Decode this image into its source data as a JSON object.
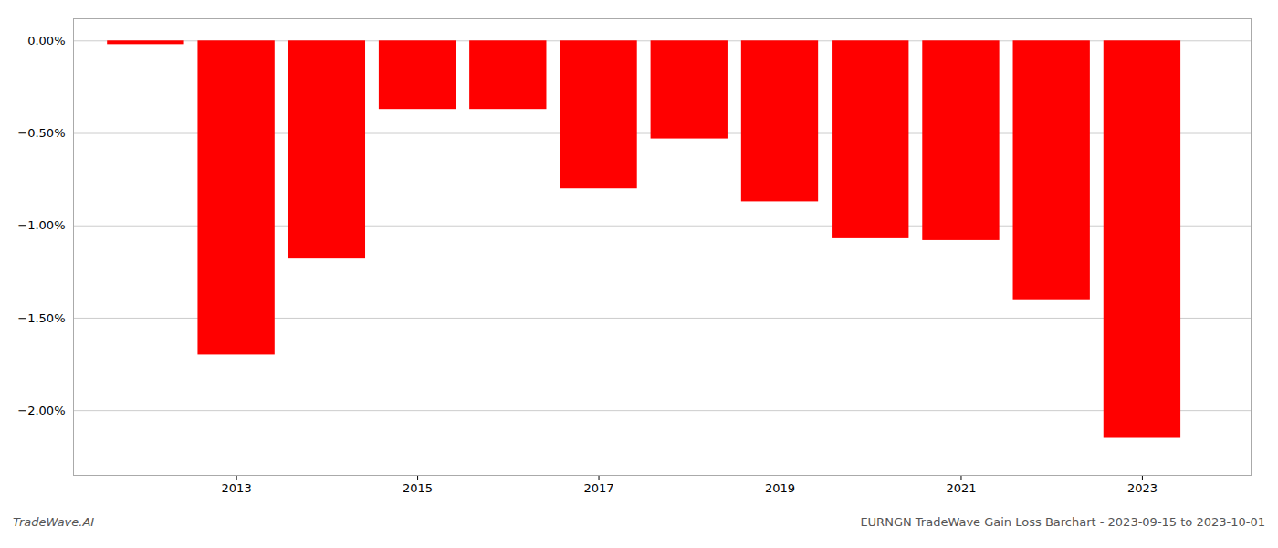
{
  "chart_data": {
    "type": "bar",
    "title": "EURNGN TradeWave Gain Loss Barchart - 2023-09-15 to 2023-10-01",
    "annotations": [
      "TradeWave.AI"
    ],
    "x": [
      2012,
      2013,
      2014,
      2015,
      2016,
      2017,
      2018,
      2019,
      2020,
      2021,
      2022,
      2023
    ],
    "values": [
      -0.02,
      -1.7,
      -1.18,
      -0.37,
      -0.37,
      -0.8,
      -0.53,
      -0.87,
      -1.07,
      -1.08,
      -1.4,
      -2.15
    ],
    "color": "#ff0000",
    "xlim": [
      2011.2,
      2024.2
    ],
    "xticks": [
      2013,
      2015,
      2017,
      2019,
      2021,
      2023
    ],
    "ylim": [
      -2.35,
      0.12
    ],
    "yticks": [
      {
        "value": 0.0,
        "label": "0.00%"
      },
      {
        "value": -0.5,
        "label": "−0.50%"
      },
      {
        "value": -1.0,
        "label": "−1.00%"
      },
      {
        "value": -1.5,
        "label": "−1.50%"
      },
      {
        "value": -2.0,
        "label": "−2.00%"
      }
    ],
    "grid": true
  }
}
